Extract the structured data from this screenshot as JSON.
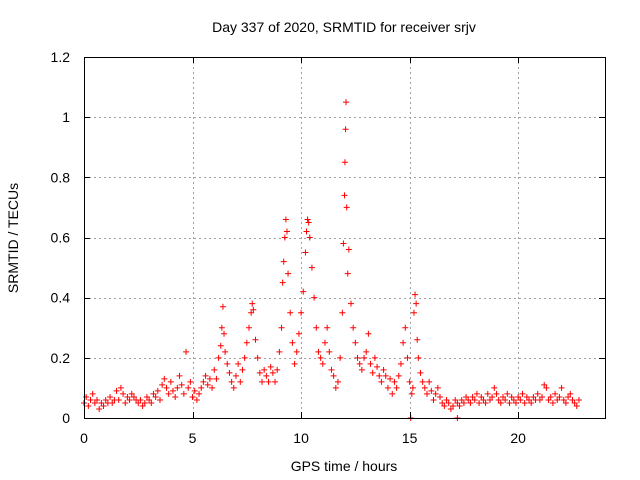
{
  "chart_data": {
    "type": "scatter",
    "title": "Day 337 of 2020, SRMTID for receiver srjv",
    "xlabel": "GPS time / hours",
    "ylabel": "SRMTID / TECUs",
    "xlim": [
      0,
      24
    ],
    "ylim": [
      0,
      1.2
    ],
    "xticks": [
      0,
      5,
      10,
      15,
      20
    ],
    "xtick_labels": [
      "0",
      "5",
      "10",
      "15",
      "20"
    ],
    "yticks": [
      0,
      0.2,
      0.4,
      0.6,
      0.8,
      1,
      1.2
    ],
    "ytick_labels": [
      "0",
      "0.2",
      "0.4",
      "0.6",
      "0.8",
      "1",
      "1.2"
    ],
    "grid": true,
    "marker": "plus",
    "color": "#ff0000",
    "series": [
      {
        "name": "srjv",
        "points": [
          [
            0.0,
            0.05
          ],
          [
            0.1,
            0.07
          ],
          [
            0.2,
            0.04
          ],
          [
            0.3,
            0.06
          ],
          [
            0.4,
            0.08
          ],
          [
            0.5,
            0.05
          ],
          [
            0.6,
            0.06
          ],
          [
            0.7,
            0.03
          ],
          [
            0.8,
            0.05
          ],
          [
            0.9,
            0.04
          ],
          [
            1.0,
            0.06
          ],
          [
            1.1,
            0.05
          ],
          [
            1.2,
            0.07
          ],
          [
            1.3,
            0.05
          ],
          [
            1.4,
            0.06
          ],
          [
            1.5,
            0.09
          ],
          [
            1.6,
            0.06
          ],
          [
            1.7,
            0.1
          ],
          [
            1.8,
            0.08
          ],
          [
            1.9,
            0.05
          ],
          [
            2.0,
            0.07
          ],
          [
            2.1,
            0.06
          ],
          [
            2.2,
            0.08
          ],
          [
            2.3,
            0.07
          ],
          [
            2.4,
            0.06
          ],
          [
            2.5,
            0.05
          ],
          [
            2.6,
            0.06
          ],
          [
            2.7,
            0.04
          ],
          [
            2.8,
            0.05
          ],
          [
            2.9,
            0.07
          ],
          [
            3.0,
            0.06
          ],
          [
            3.1,
            0.05
          ],
          [
            3.2,
            0.08
          ],
          [
            3.3,
            0.07
          ],
          [
            3.4,
            0.09
          ],
          [
            3.5,
            0.06
          ],
          [
            3.6,
            0.11
          ],
          [
            3.7,
            0.13
          ],
          [
            3.8,
            0.1
          ],
          [
            3.9,
            0.08
          ],
          [
            4.0,
            0.12
          ],
          [
            4.1,
            0.09
          ],
          [
            4.2,
            0.07
          ],
          [
            4.3,
            0.1
          ],
          [
            4.4,
            0.14
          ],
          [
            4.5,
            0.11
          ],
          [
            4.6,
            0.08
          ],
          [
            4.7,
            0.22
          ],
          [
            4.8,
            0.1
          ],
          [
            4.9,
            0.12
          ],
          [
            5.0,
            0.07
          ],
          [
            5.1,
            0.09
          ],
          [
            5.2,
            0.06
          ],
          [
            5.3,
            0.08
          ],
          [
            5.4,
            0.1
          ],
          [
            5.5,
            0.12
          ],
          [
            5.6,
            0.14
          ],
          [
            5.7,
            0.11
          ],
          [
            5.8,
            0.13
          ],
          [
            5.9,
            0.1
          ],
          [
            6.0,
            0.16
          ],
          [
            6.1,
            0.13
          ],
          [
            6.2,
            0.2
          ],
          [
            6.3,
            0.24
          ],
          [
            6.35,
            0.3
          ],
          [
            6.4,
            0.37
          ],
          [
            6.45,
            0.28
          ],
          [
            6.5,
            0.22
          ],
          [
            6.6,
            0.18
          ],
          [
            6.7,
            0.15
          ],
          [
            6.8,
            0.12
          ],
          [
            6.9,
            0.1
          ],
          [
            7.0,
            0.14
          ],
          [
            7.1,
            0.18
          ],
          [
            7.2,
            0.12
          ],
          [
            7.3,
            0.16
          ],
          [
            7.4,
            0.2
          ],
          [
            7.5,
            0.25
          ],
          [
            7.6,
            0.3
          ],
          [
            7.7,
            0.35
          ],
          [
            7.75,
            0.38
          ],
          [
            7.8,
            0.36
          ],
          [
            7.9,
            0.26
          ],
          [
            8.0,
            0.2
          ],
          [
            8.1,
            0.15
          ],
          [
            8.2,
            0.12
          ],
          [
            8.3,
            0.16
          ],
          [
            8.4,
            0.14
          ],
          [
            8.5,
            0.12
          ],
          [
            8.6,
            0.17
          ],
          [
            8.7,
            0.15
          ],
          [
            8.8,
            0.12
          ],
          [
            8.9,
            0.16
          ],
          [
            9.0,
            0.22
          ],
          [
            9.1,
            0.3
          ],
          [
            9.15,
            0.45
          ],
          [
            9.2,
            0.52
          ],
          [
            9.25,
            0.6
          ],
          [
            9.3,
            0.66
          ],
          [
            9.35,
            0.62
          ],
          [
            9.4,
            0.48
          ],
          [
            9.5,
            0.35
          ],
          [
            9.6,
            0.25
          ],
          [
            9.7,
            0.18
          ],
          [
            9.8,
            0.22
          ],
          [
            9.9,
            0.28
          ],
          [
            10.0,
            0.35
          ],
          [
            10.1,
            0.42
          ],
          [
            10.2,
            0.55
          ],
          [
            10.25,
            0.62
          ],
          [
            10.3,
            0.66
          ],
          [
            10.35,
            0.65
          ],
          [
            10.4,
            0.6
          ],
          [
            10.5,
            0.5
          ],
          [
            10.6,
            0.4
          ],
          [
            10.7,
            0.3
          ],
          [
            10.8,
            0.22
          ],
          [
            10.9,
            0.2
          ],
          [
            11.0,
            0.18
          ],
          [
            11.1,
            0.25
          ],
          [
            11.2,
            0.3
          ],
          [
            11.3,
            0.22
          ],
          [
            11.4,
            0.16
          ],
          [
            11.5,
            0.14
          ],
          [
            11.6,
            0.1
          ],
          [
            11.7,
            0.12
          ],
          [
            11.8,
            0.2
          ],
          [
            11.9,
            0.35
          ],
          [
            11.95,
            0.58
          ],
          [
            12.0,
            0.74
          ],
          [
            12.02,
            0.85
          ],
          [
            12.05,
            0.96
          ],
          [
            12.07,
            1.05
          ],
          [
            12.1,
            0.7
          ],
          [
            12.15,
            0.48
          ],
          [
            12.2,
            0.56
          ],
          [
            12.3,
            0.38
          ],
          [
            12.4,
            0.3
          ],
          [
            12.5,
            0.25
          ],
          [
            12.6,
            0.2
          ],
          [
            12.7,
            0.18
          ],
          [
            12.8,
            0.16
          ],
          [
            12.9,
            0.2
          ],
          [
            13.0,
            0.22
          ],
          [
            13.1,
            0.28
          ],
          [
            13.2,
            0.18
          ],
          [
            13.3,
            0.15
          ],
          [
            13.4,
            0.2
          ],
          [
            13.5,
            0.17
          ],
          [
            13.6,
            0.14
          ],
          [
            13.7,
            0.12
          ],
          [
            13.8,
            0.16
          ],
          [
            13.9,
            0.14
          ],
          [
            14.0,
            0.1
          ],
          [
            14.1,
            0.13
          ],
          [
            14.2,
            0.08
          ],
          [
            14.3,
            0.12
          ],
          [
            14.4,
            0.1
          ],
          [
            14.5,
            0.14
          ],
          [
            14.6,
            0.18
          ],
          [
            14.7,
            0.25
          ],
          [
            14.8,
            0.3
          ],
          [
            14.9,
            0.2
          ],
          [
            15.0,
            0.12
          ],
          [
            15.1,
            0.08
          ],
          [
            15.15,
            0.1
          ],
          [
            15.2,
            0.35
          ],
          [
            15.25,
            0.41
          ],
          [
            15.3,
            0.38
          ],
          [
            15.35,
            0.26
          ],
          [
            15.4,
            0.2
          ],
          [
            15.5,
            0.15
          ],
          [
            15.6,
            0.12
          ],
          [
            15.7,
            0.1
          ],
          [
            15.8,
            0.08
          ],
          [
            15.9,
            0.12
          ],
          [
            16.0,
            0.09
          ],
          [
            16.1,
            0.06
          ],
          [
            16.2,
            0.08
          ],
          [
            16.3,
            0.1
          ],
          [
            16.4,
            0.07
          ],
          [
            16.5,
            0.05
          ],
          [
            16.6,
            0.04
          ],
          [
            16.7,
            0.06
          ],
          [
            16.8,
            0.05
          ],
          [
            16.9,
            0.03
          ],
          [
            17.0,
            0.04
          ],
          [
            17.1,
            0.06
          ],
          [
            17.2,
            0.05
          ],
          [
            17.3,
            0.04
          ],
          [
            17.4,
            0.06
          ],
          [
            17.5,
            0.05
          ],
          [
            17.6,
            0.07
          ],
          [
            17.7,
            0.06
          ],
          [
            17.8,
            0.05
          ],
          [
            17.9,
            0.07
          ],
          [
            18.0,
            0.06
          ],
          [
            18.1,
            0.08
          ],
          [
            18.2,
            0.05
          ],
          [
            18.3,
            0.07
          ],
          [
            18.4,
            0.06
          ],
          [
            18.5,
            0.05
          ],
          [
            18.6,
            0.08
          ],
          [
            18.7,
            0.06
          ],
          [
            18.8,
            0.07
          ],
          [
            18.9,
            0.1
          ],
          [
            19.0,
            0.08
          ],
          [
            19.1,
            0.06
          ],
          [
            19.2,
            0.05
          ],
          [
            19.3,
            0.07
          ],
          [
            19.4,
            0.06
          ],
          [
            19.5,
            0.08
          ],
          [
            19.6,
            0.05
          ],
          [
            19.7,
            0.07
          ],
          [
            19.8,
            0.06
          ],
          [
            19.9,
            0.05
          ],
          [
            20.0,
            0.07
          ],
          [
            20.1,
            0.06
          ],
          [
            20.2,
            0.08
          ],
          [
            20.3,
            0.05
          ],
          [
            20.4,
            0.07
          ],
          [
            20.5,
            0.06
          ],
          [
            20.6,
            0.05
          ],
          [
            20.7,
            0.07
          ],
          [
            20.8,
            0.06
          ],
          [
            20.9,
            0.08
          ],
          [
            21.0,
            0.06
          ],
          [
            21.1,
            0.07
          ],
          [
            21.2,
            0.11
          ],
          [
            21.3,
            0.1
          ],
          [
            21.4,
            0.06
          ],
          [
            21.5,
            0.07
          ],
          [
            21.6,
            0.05
          ],
          [
            21.7,
            0.08
          ],
          [
            21.8,
            0.06
          ],
          [
            21.9,
            0.07
          ],
          [
            22.0,
            0.1
          ],
          [
            22.1,
            0.06
          ],
          [
            22.2,
            0.05
          ],
          [
            22.3,
            0.07
          ],
          [
            22.4,
            0.08
          ],
          [
            22.5,
            0.06
          ],
          [
            22.6,
            0.05
          ],
          [
            22.7,
            0.04
          ],
          [
            22.8,
            0.06
          ],
          [
            15.05,
            0.0
          ],
          [
            17.2,
            0.0
          ]
        ]
      }
    ]
  }
}
